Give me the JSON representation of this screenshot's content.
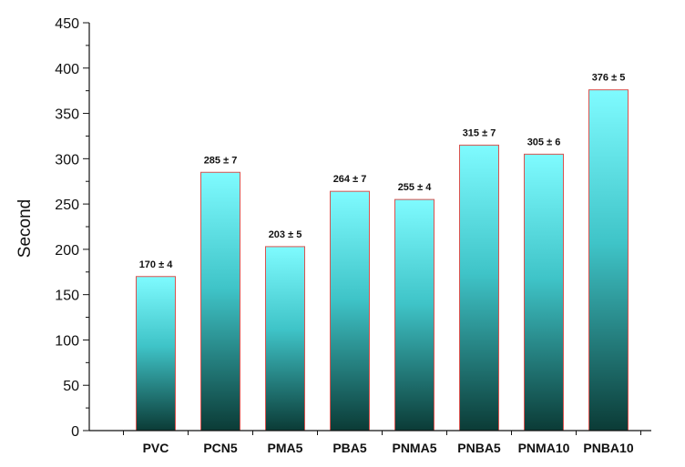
{
  "chart_data": {
    "type": "bar",
    "categories": [
      "PVC",
      "PCN5",
      "PMA5",
      "PBA5",
      "PNMA5",
      "PNBA5",
      "PNMA10",
      "PNBA10"
    ],
    "values": [
      170,
      285,
      203,
      264,
      255,
      315,
      305,
      376
    ],
    "errors": [
      4,
      7,
      5,
      7,
      4,
      7,
      6,
      5
    ],
    "data_labels": [
      "170 ± 4",
      "285 ± 7",
      "203 ± 5",
      "264 ± 7",
      "255 ± 4",
      "315 ± 7",
      "305 ± 6",
      "376 ± 5"
    ],
    "ylabel": "Second",
    "ylim": [
      0,
      450
    ],
    "yticks": [
      "0",
      "50",
      "100",
      "150",
      "200",
      "250",
      "300",
      "350",
      "400",
      "450"
    ],
    "grid": false,
    "colors": {
      "bar_top": "#7ffbff",
      "bar_bottom": "#0b3b36",
      "bar_border": "#d9534f",
      "axis": "#111111"
    }
  }
}
